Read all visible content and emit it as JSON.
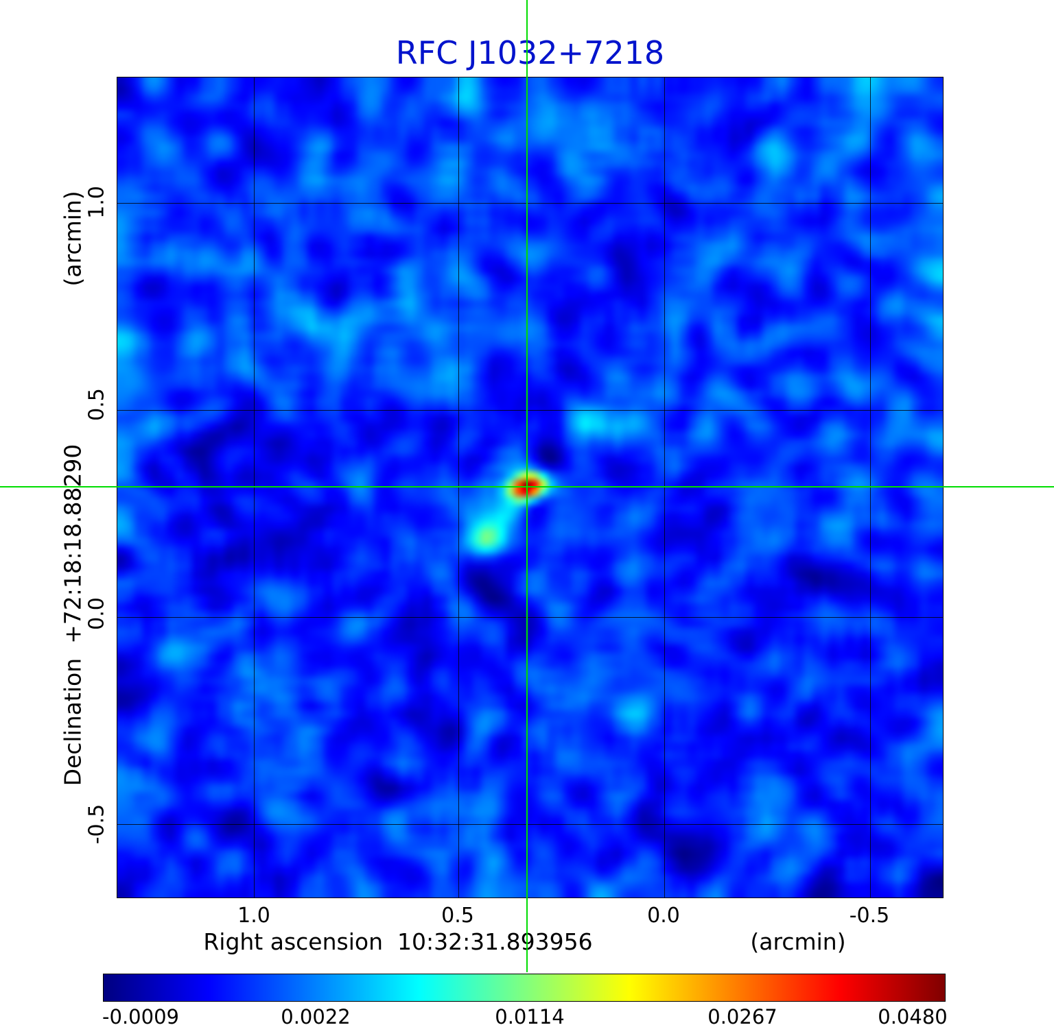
{
  "title": "RFC J1032+7218",
  "axes": {
    "x": {
      "label": "Right ascension  10:32:31.893956",
      "unit": "(arcmin)",
      "ticks": [
        "1.0",
        "0.5",
        "0.0",
        "-0.5"
      ]
    },
    "y": {
      "label": "Declination  +72:18:18.88290",
      "unit": "(arcmin)",
      "ticks": [
        "1.0",
        "0.5",
        "0.0",
        "-0.5"
      ]
    }
  },
  "colorbar": {
    "ticks": [
      "-0.0009",
      "0.0022",
      "0.0114",
      "0.0267",
      "0.0480"
    ]
  },
  "colors": {
    "title": "#0013cc",
    "crosshair": "#00dd00",
    "grid": "#000000"
  },
  "chart_data": {
    "type": "heatmap",
    "title": "RFC J1032+7218",
    "xlabel": "Right ascension 10:32:31.893956 (arcmin)",
    "ylabel": "Declination +72:18:18.88290 (arcmin)",
    "x_ticks": [
      1.0,
      0.5,
      0.0,
      -0.5
    ],
    "y_ticks": [
      1.0,
      0.5,
      0.0,
      -0.5
    ],
    "xlim": [
      1.33,
      -0.68
    ],
    "ylim": [
      -0.68,
      1.3
    ],
    "grid": true,
    "legend": false,
    "colormap": "jet",
    "colorbar_ticks": [
      -0.0009,
      0.0022,
      0.0114,
      0.0267,
      0.048
    ],
    "crosshair_arcmin": {
      "ra_offset": 0.33,
      "dec_offset": 0.31
    },
    "sources_arcmin": [
      {
        "ra_offset": 0.33,
        "dec_offset": 0.31,
        "peak_value": 0.048,
        "note": "primary compact source at crosshair"
      },
      {
        "ra_offset": 0.43,
        "dec_offset": 0.18,
        "peak_value": 0.012,
        "note": "secondary cyan blob south-east of peak"
      },
      {
        "ra_offset": 0.13,
        "dec_offset": 0.46,
        "peak_value": 0.008,
        "note": "faint extended patch north-west of peak"
      }
    ],
    "background_rms_estimate": 0.001,
    "render": {
      "grid_n": 100,
      "seed": 20117,
      "background_level": 0.17,
      "noise_sigma": 0.042,
      "patch_sigma": 0.026,
      "sources": [
        {
          "x": 0.496,
          "y": 0.499,
          "amp": 0.88,
          "sx": 1.6,
          "sy": 1.05,
          "rot": -15
        },
        {
          "x": 0.473,
          "y": 0.532,
          "amp": 0.08,
          "sx": 2.6,
          "sy": 1.0,
          "rot": -35
        },
        {
          "x": 0.45,
          "y": 0.564,
          "amp": 0.26,
          "sx": 1.9,
          "sy": 1.3,
          "rot": -10
        },
        {
          "x": 0.596,
          "y": 0.424,
          "amp": 0.17,
          "sx": 2.4,
          "sy": 1.6,
          "rot": 0
        },
        {
          "x": 0.512,
          "y": 0.46,
          "amp": -0.1,
          "sx": 2.0,
          "sy": 1.3,
          "rot": 0
        }
      ]
    }
  }
}
